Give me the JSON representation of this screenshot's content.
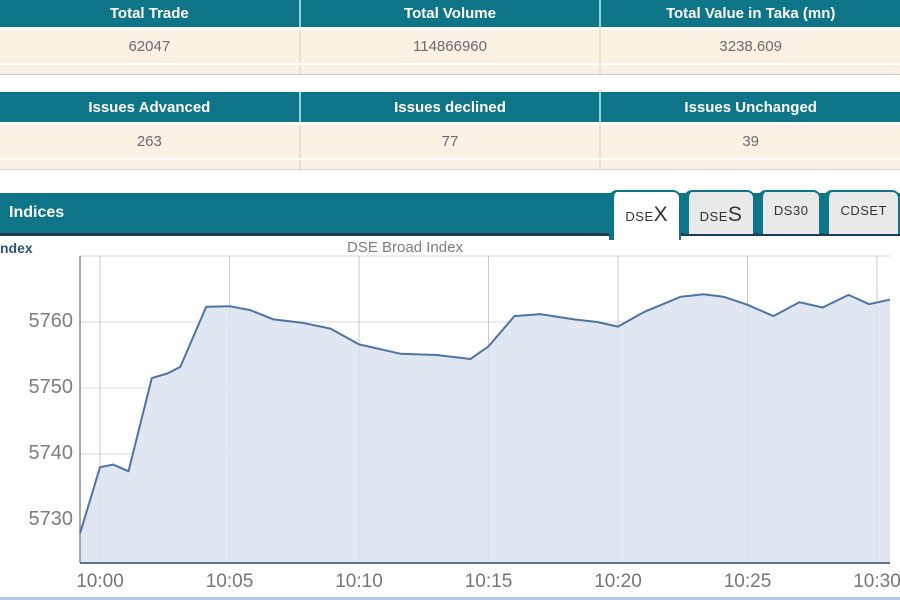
{
  "summary_table": {
    "headers": [
      "Total Trade",
      "Total Volume",
      "Total Value in Taka (mn)"
    ],
    "values": [
      "62047",
      "114866960",
      "3238.609"
    ]
  },
  "issues_table": {
    "headers": [
      "Issues Advanced",
      "Issues declined",
      "Issues Unchanged"
    ],
    "values": [
      "263",
      "77",
      "39"
    ]
  },
  "indices": {
    "title": "Indices",
    "tabs": [
      {
        "small": "DSE",
        "big": "X",
        "label": "DSEX",
        "active": true
      },
      {
        "small": "DSE",
        "big": "S",
        "label": "DSES",
        "active": false
      },
      {
        "small": "DS30",
        "big": "",
        "label": "DS30",
        "active": false
      },
      {
        "small": "CDSET",
        "big": "",
        "label": "CDSET",
        "active": false
      }
    ]
  },
  "chart_data": {
    "type": "area",
    "title": "DSE Broad Index",
    "legend_partial_text": "ndex",
    "x_ticks": [
      {
        "minute": 0,
        "label": "10:00"
      },
      {
        "minute": 5,
        "label": "10:05"
      },
      {
        "minute": 10,
        "label": "10:10"
      },
      {
        "minute": 15,
        "label": "10:15"
      },
      {
        "minute": 20,
        "label": "10:20"
      },
      {
        "minute": 25,
        "label": "10:25"
      },
      {
        "minute": 30,
        "label": "10:30"
      }
    ],
    "y_ticks": [
      5760,
      5750,
      5740,
      5730
    ],
    "y_gridlines": [
      5770,
      5760,
      5750,
      5740,
      5730
    ],
    "xlim_minutes": [
      -0.77,
      30.5
    ],
    "ylim": [
      5723.5,
      5770
    ],
    "grid": true,
    "legend_position": "top-left",
    "series": [
      {
        "name": "DSE Broad Index",
        "points": [
          [
            -0.77,
            5728.0
          ],
          [
            0,
            5738.0
          ],
          [
            0.5,
            5738.4
          ],
          [
            1.1,
            5737.4
          ],
          [
            2.0,
            5751.5
          ],
          [
            2.6,
            5752.2
          ],
          [
            3.1,
            5753.2
          ],
          [
            4.1,
            5762.3
          ],
          [
            5.0,
            5762.4
          ],
          [
            5.8,
            5761.8
          ],
          [
            6.7,
            5760.4
          ],
          [
            7.8,
            5759.9
          ],
          [
            8.9,
            5759.0
          ],
          [
            10.0,
            5756.6
          ],
          [
            11.6,
            5755.2
          ],
          [
            13.0,
            5755.0
          ],
          [
            14.3,
            5754.4
          ],
          [
            15.0,
            5756.3
          ],
          [
            16.0,
            5760.9
          ],
          [
            17.0,
            5761.2
          ],
          [
            18.3,
            5760.4
          ],
          [
            19.2,
            5760.0
          ],
          [
            20.0,
            5759.3
          ],
          [
            21.0,
            5761.5
          ],
          [
            22.4,
            5763.8
          ],
          [
            23.3,
            5764.2
          ],
          [
            24.1,
            5763.8
          ],
          [
            25.0,
            5762.6
          ],
          [
            26.0,
            5760.9
          ],
          [
            27.0,
            5763.0
          ],
          [
            27.9,
            5762.2
          ],
          [
            28.9,
            5764.1
          ],
          [
            29.7,
            5762.7
          ],
          [
            30.5,
            5763.4
          ]
        ]
      }
    ],
    "colors": {
      "line": "#4f74a3",
      "fill": "#dbe3f0",
      "grid_vertical": "#c9c9c9",
      "grid_horizontal": "#d9d9d9",
      "y_axis": "#8a8a8a",
      "x_axis": "#62717f"
    }
  },
  "theme_colors": {
    "header_teal": "#0e7488",
    "navy_border": "#1b3d52",
    "row_cream": "#fbf2e3",
    "tab_inactive": "#e9e9e9",
    "bottom_border_blue": "#b3cbe6"
  }
}
